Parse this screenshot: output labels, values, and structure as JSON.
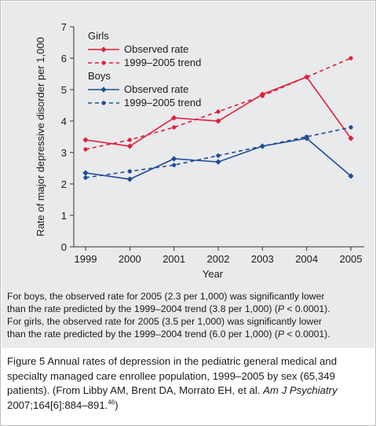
{
  "chart_data": {
    "type": "line",
    "x": [
      1999,
      2000,
      2001,
      2002,
      2003,
      2004,
      2005
    ],
    "xlabel": "Year",
    "ylabel": "Rate of major depressive disorder per 1,000",
    "ylim": [
      0,
      7
    ],
    "yticks": [
      0,
      1,
      2,
      3,
      4,
      5,
      6,
      7
    ],
    "grid": false,
    "legend_placement": "top-left",
    "legend_groups": [
      {
        "title": "Girls",
        "entries": [
          "Observed rate",
          "1999–2005 trend"
        ]
      },
      {
        "title": "Boys",
        "entries": [
          "Observed rate",
          "1999–2005 trend"
        ]
      }
    ],
    "series": [
      {
        "group": "Girls",
        "name": "Observed rate",
        "style": "solid",
        "color": "#e0203a",
        "values": [
          3.4,
          3.2,
          4.1,
          4.0,
          4.85,
          5.4,
          3.45
        ]
      },
      {
        "group": "Girls",
        "name": "1999–2005 trend",
        "style": "dashed",
        "color": "#e0203a",
        "values": [
          3.1,
          3.4,
          3.8,
          4.3,
          4.8,
          5.4,
          6.0
        ]
      },
      {
        "group": "Boys",
        "name": "Observed rate",
        "style": "solid",
        "color": "#1f4e96",
        "values": [
          2.35,
          2.15,
          2.8,
          2.7,
          3.2,
          3.45,
          2.25
        ]
      },
      {
        "group": "Boys",
        "name": "1999–2005 trend",
        "style": "dashed",
        "color": "#1f4e96",
        "values": [
          2.2,
          2.4,
          2.6,
          2.9,
          3.2,
          3.5,
          3.8
        ]
      }
    ]
  },
  "note": {
    "line1_a": "For boys, the observed rate for 2005 (2.3 per 1,000) was significantly lower",
    "line2_a": "than the rate predicted by the 1999–2004 trend (3.8 per 1,000) (",
    "line2_p": "P",
    "line2_b": " < 0.0001).",
    "line3_a": "For girls, the observed rate for 2005 (3.5 per 1,000) was significantly lower",
    "line4_a": "than the rate predicted by the 1999–2004 trend (6.0 per 1,000) (",
    "line4_p": "P",
    "line4_b": " < 0.0001)."
  },
  "caption": {
    "text": "Figure 5  Annual rates of depression in the pediatric general medical and specialty managed care enrollee population, 1999–2005 by sex (65,349 patients). (From Libby AM, Brent DA, Morrato EH, et al. ",
    "journal": "Am J Psychiatry",
    "citation": " 2007;164[6]:884–891.",
    "ref": "46",
    "close": ")"
  }
}
